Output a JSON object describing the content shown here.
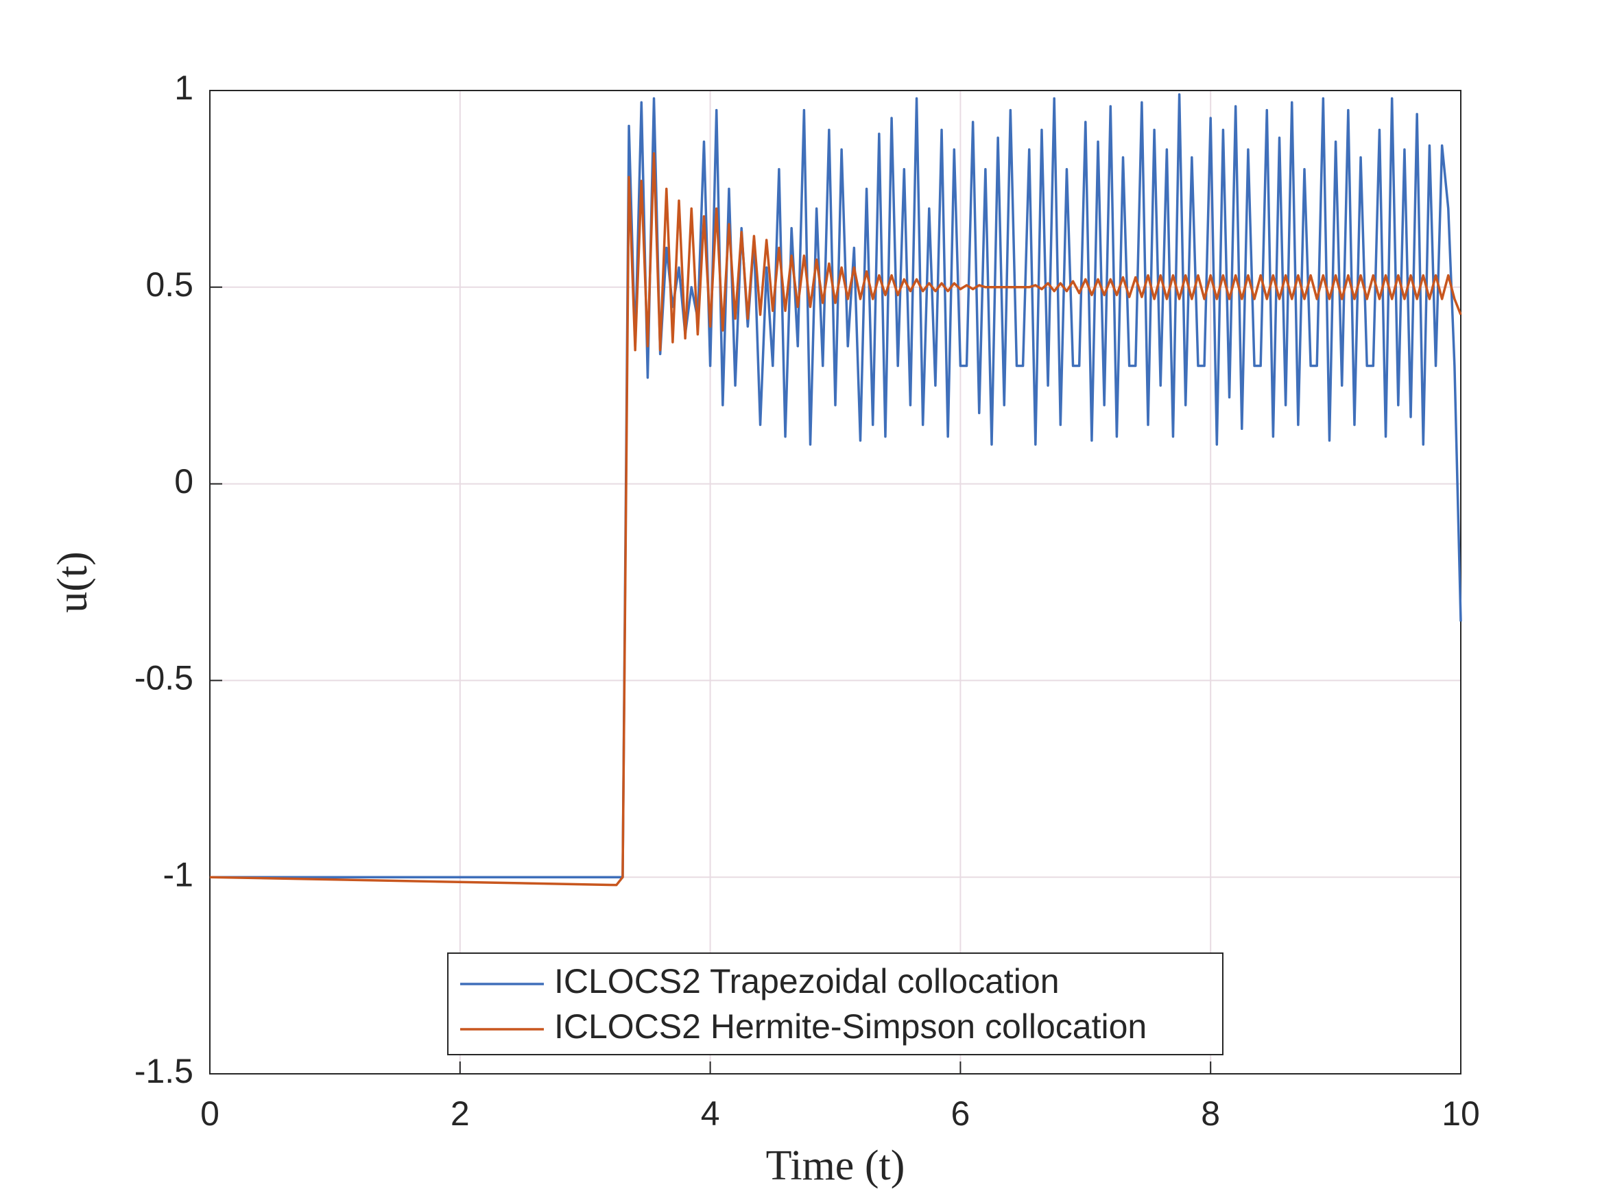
{
  "chart_data": {
    "type": "line",
    "xlabel": "Time (t)",
    "ylabel": "u(t)",
    "xlim": [
      0,
      10
    ],
    "xticks": [
      0,
      2,
      4,
      6,
      8,
      10
    ],
    "ylim": [
      -1.5,
      1
    ],
    "yticks": [
      -1.5,
      -1,
      -0.5,
      0,
      0.5,
      1
    ],
    "grid": true,
    "legend": "lower center",
    "x": [
      0,
      3.25,
      3.3,
      3.35,
      3.4,
      3.45,
      3.5,
      3.55,
      3.6,
      3.65,
      3.7,
      3.75,
      3.8,
      3.85,
      3.9,
      3.95,
      4,
      4.05,
      4.1,
      4.15,
      4.2,
      4.25,
      4.3,
      4.35,
      4.4,
      4.45,
      4.5,
      4.55,
      4.6,
      4.65,
      4.7,
      4.75,
      4.8,
      4.85,
      4.9,
      4.95,
      5,
      5.05,
      5.1,
      5.15,
      5.2,
      5.25,
      5.3,
      5.35,
      5.4,
      5.45,
      5.5,
      5.55,
      5.6,
      5.65,
      5.7,
      5.75,
      5.8,
      5.85,
      5.9,
      5.95,
      6,
      6.05,
      6.1,
      6.15,
      6.2,
      6.25,
      6.3,
      6.35,
      6.4,
      6.45,
      6.5,
      6.55,
      6.6,
      6.65,
      6.7,
      6.75,
      6.8,
      6.85,
      6.9,
      6.95,
      7,
      7.05,
      7.1,
      7.15,
      7.2,
      7.25,
      7.3,
      7.35,
      7.4,
      7.45,
      7.5,
      7.55,
      7.6,
      7.65,
      7.7,
      7.75,
      7.8,
      7.85,
      7.9,
      7.95,
      8,
      8.05,
      8.1,
      8.15,
      8.2,
      8.25,
      8.3,
      8.35,
      8.4,
      8.45,
      8.5,
      8.55,
      8.6,
      8.65,
      8.7,
      8.75,
      8.8,
      8.85,
      8.9,
      8.95,
      9,
      9.05,
      9.1,
      9.15,
      9.2,
      9.25,
      9.3,
      9.35,
      9.4,
      9.45,
      9.5,
      9.55,
      9.6,
      9.65,
      9.7,
      9.75,
      9.8,
      9.85,
      9.9,
      9.95,
      10
    ],
    "series": [
      {
        "name": "ICLOCS2 Trapezoidal collocation",
        "color": "#3f6fba",
        "values": [
          -1,
          -1,
          -1,
          0.91,
          0.35,
          0.97,
          0.27,
          0.98,
          0.33,
          0.6,
          0.45,
          0.55,
          0.38,
          0.5,
          0.42,
          0.87,
          0.3,
          0.95,
          0.2,
          0.75,
          0.25,
          0.65,
          0.4,
          0.62,
          0.15,
          0.55,
          0.3,
          0.8,
          0.12,
          0.65,
          0.35,
          0.95,
          0.1,
          0.7,
          0.3,
          0.9,
          0.2,
          0.85,
          0.35,
          0.6,
          0.11,
          0.75,
          0.15,
          0.89,
          0.12,
          0.93,
          0.3,
          0.8,
          0.2,
          0.98,
          0.15,
          0.7,
          0.25,
          0.9,
          0.12,
          0.85,
          0.3,
          0.3,
          0.92,
          0.18,
          0.8,
          0.1,
          0.88,
          0.2,
          0.95,
          0.3,
          0.3,
          0.85,
          0.1,
          0.9,
          0.25,
          0.98,
          0.15,
          0.8,
          0.3,
          0.3,
          0.92,
          0.11,
          0.87,
          0.2,
          0.96,
          0.12,
          0.83,
          0.3,
          0.3,
          0.97,
          0.15,
          0.9,
          0.25,
          0.85,
          0.12,
          0.99,
          0.2,
          0.83,
          0.3,
          0.3,
          0.93,
          0.1,
          0.9,
          0.22,
          0.96,
          0.14,
          0.85,
          0.3,
          0.3,
          0.95,
          0.12,
          0.88,
          0.2,
          0.97,
          0.15,
          0.8,
          0.3,
          0.3,
          0.98,
          0.11,
          0.87,
          0.25,
          0.95,
          0.15,
          0.83,
          0.3,
          0.3,
          0.9,
          0.12,
          0.98,
          0.2,
          0.85,
          0.17,
          0.94,
          0.1,
          0.86,
          0.3,
          0.86,
          0.7,
          0.3,
          -0.35
        ]
      },
      {
        "name": "ICLOCS2 Hermite-Simpson collocation",
        "color": "#c8561e",
        "values": [
          -1,
          -1.02,
          -1,
          0.78,
          0.34,
          0.77,
          0.35,
          0.84,
          0.34,
          0.75,
          0.36,
          0.72,
          0.37,
          0.7,
          0.38,
          0.68,
          0.4,
          0.7,
          0.39,
          0.66,
          0.42,
          0.64,
          0.42,
          0.63,
          0.43,
          0.62,
          0.44,
          0.6,
          0.44,
          0.58,
          0.45,
          0.58,
          0.45,
          0.57,
          0.46,
          0.56,
          0.46,
          0.55,
          0.47,
          0.55,
          0.47,
          0.54,
          0.47,
          0.53,
          0.48,
          0.53,
          0.48,
          0.52,
          0.49,
          0.52,
          0.49,
          0.51,
          0.49,
          0.51,
          0.49,
          0.51,
          0.495,
          0.505,
          0.495,
          0.505,
          0.5,
          0.5,
          0.5,
          0.5,
          0.5,
          0.5,
          0.5,
          0.5,
          0.505,
          0.495,
          0.51,
          0.49,
          0.51,
          0.49,
          0.515,
          0.485,
          0.52,
          0.48,
          0.52,
          0.48,
          0.52,
          0.48,
          0.525,
          0.475,
          0.525,
          0.475,
          0.53,
          0.47,
          0.53,
          0.47,
          0.53,
          0.47,
          0.53,
          0.47,
          0.53,
          0.47,
          0.53,
          0.47,
          0.53,
          0.47,
          0.53,
          0.47,
          0.53,
          0.47,
          0.53,
          0.47,
          0.53,
          0.47,
          0.53,
          0.47,
          0.53,
          0.47,
          0.53,
          0.47,
          0.53,
          0.47,
          0.53,
          0.47,
          0.53,
          0.47,
          0.53,
          0.47,
          0.53,
          0.47,
          0.53,
          0.47,
          0.53,
          0.47,
          0.53,
          0.47,
          0.53,
          0.47,
          0.53,
          0.47,
          0.53,
          0.47,
          0.43
        ]
      }
    ]
  }
}
